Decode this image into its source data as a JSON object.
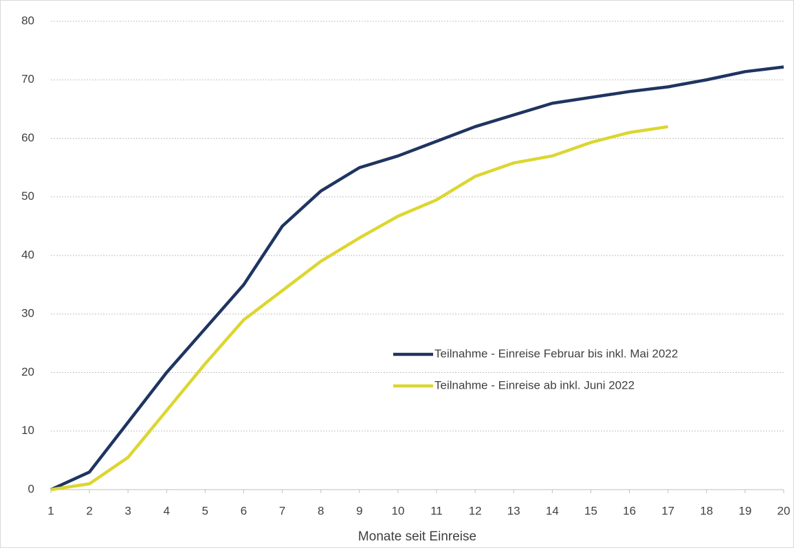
{
  "chart_data": {
    "type": "line",
    "x_label": "Monate seit Einreise",
    "x": [
      1,
      2,
      3,
      4,
      5,
      6,
      7,
      8,
      9,
      10,
      11,
      12,
      13,
      14,
      15,
      16,
      17,
      18,
      19,
      20
    ],
    "xlim": [
      1,
      20
    ],
    "xticks": [
      1,
      2,
      3,
      4,
      5,
      6,
      7,
      8,
      9,
      10,
      11,
      12,
      13,
      14,
      15,
      16,
      17,
      18,
      19,
      20
    ],
    "ylim": [
      0,
      80
    ],
    "yticks": [
      0,
      10,
      20,
      30,
      40,
      50,
      60,
      70,
      80
    ],
    "grid": true,
    "legend": "center-right",
    "series": [
      {
        "name": "Teilnahme - Einreise Februar bis inkl. Mai 2022",
        "color": "#1f3461",
        "values": [
          0,
          3,
          11.5,
          20,
          27.5,
          35,
          45,
          51,
          55,
          57,
          59.5,
          62,
          64,
          66,
          67,
          68,
          68.8,
          70,
          71.4,
          72.2
        ]
      },
      {
        "name": "Teilnahme - Einreise ab inkl. Juni 2022",
        "color": "#dcd630",
        "values": [
          0,
          1,
          5.5,
          13.5,
          21.5,
          29,
          34,
          39,
          43,
          46.7,
          49.5,
          53.5,
          55.8,
          57,
          59.3,
          61,
          62,
          null,
          null,
          null
        ]
      }
    ]
  }
}
